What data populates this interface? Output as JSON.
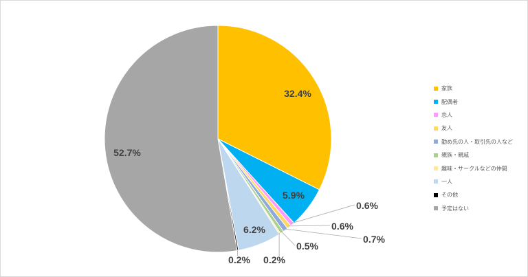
{
  "chart_data": {
    "type": "pie",
    "title": "",
    "start_angle_deg": 0,
    "direction": "clockwise",
    "legend_position": "right",
    "slices": [
      {
        "label": "家族",
        "value": 32.4,
        "value_label": "32.4%",
        "color": "#FFC000"
      },
      {
        "label": "配偶者",
        "value": 5.9,
        "value_label": "5.9%",
        "color": "#00B0F0"
      },
      {
        "label": "恋人",
        "value": 0.6,
        "value_label": "0.6%",
        "color": "#FF99FF"
      },
      {
        "label": "友人",
        "value": 0.6,
        "value_label": "0.6%",
        "color": "#FFD966"
      },
      {
        "label": "勤め先の人・取引先の人など",
        "value": 0.7,
        "value_label": "0.7%",
        "color": "#8EA9DB"
      },
      {
        "label": "親族・親戚",
        "value": 0.5,
        "value_label": "0.5%",
        "color": "#A9D08E"
      },
      {
        "label": "趣味・サークルなどの仲間",
        "value": 0.2,
        "value_label": "0.2%",
        "color": "#FFE699"
      },
      {
        "label": "一人",
        "value": 6.2,
        "value_label": "6.2%",
        "color": "#BDD7EE"
      },
      {
        "label": "その他",
        "value": 0.2,
        "value_label": "0.2%",
        "color": "#000000"
      },
      {
        "label": "予定はない",
        "value": 52.7,
        "value_label": "52.7%",
        "color": "#A6A6A6"
      }
    ]
  }
}
